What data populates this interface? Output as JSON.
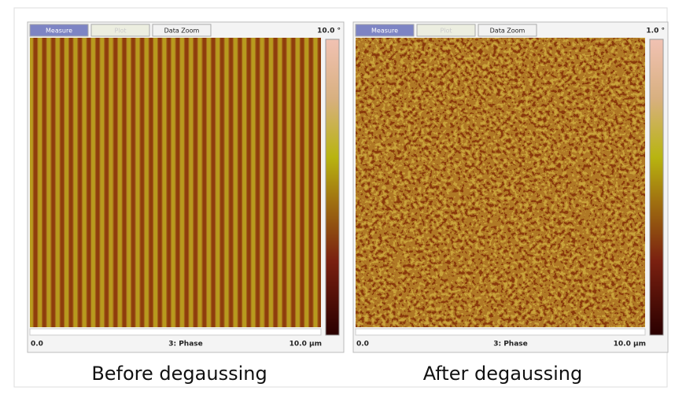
{
  "panels": [
    {
      "tabs": [
        "Measure",
        "Plot",
        "Data Zoom"
      ],
      "scale_max": "10.0 °",
      "x_start": "0.0",
      "channel": "3: Phase",
      "x_end": "10.0 µm",
      "caption": "Before degaussing"
    },
    {
      "tabs": [
        "Measure",
        "Plot",
        "Data Zoom"
      ],
      "scale_max": "1.0 °",
      "x_start": "0.0",
      "channel": "3: Phase",
      "x_end": "10.0 µm",
      "caption": "After degaussing"
    }
  ]
}
